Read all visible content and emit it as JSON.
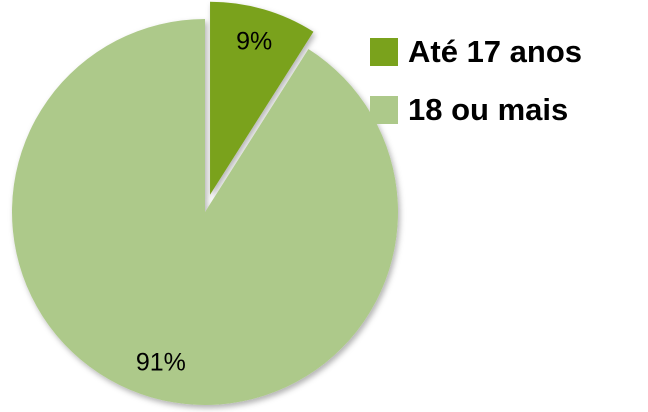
{
  "chart_data": {
    "type": "pie",
    "categories": [
      "Até 17 anos",
      "18 ou mais"
    ],
    "values": [
      9,
      91
    ],
    "value_labels": [
      "9%",
      "91%"
    ],
    "colors": [
      "#7aa21c",
      "#adc98a"
    ],
    "exploded": [
      true,
      false
    ],
    "legend": "top-right"
  }
}
